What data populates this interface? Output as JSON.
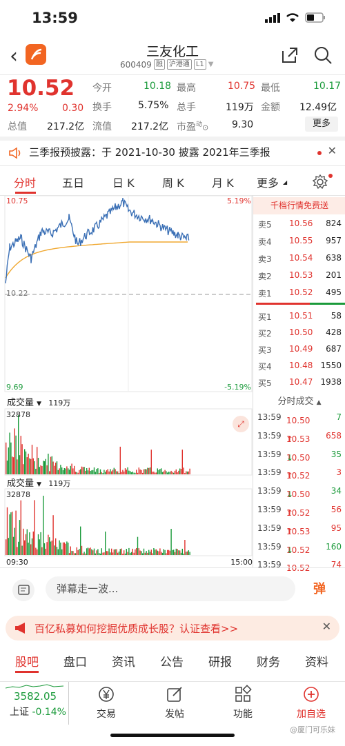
{
  "status": {
    "time": "13:59"
  },
  "nav": {
    "title": "三友化工",
    "code": "600409",
    "tags": [
      "融",
      "沪港通",
      "L1"
    ]
  },
  "quote": {
    "price": "10.52",
    "pct": "2.94%",
    "change": "0.30",
    "open_label": "今开",
    "open": "10.18",
    "high_label": "最高",
    "high": "10.75",
    "low_label": "最低",
    "low": "10.17",
    "turnover_label": "换手",
    "turnover": "5.75%",
    "volume_label": "总手",
    "volume": "119万",
    "amount_label": "金额",
    "amount": "12.49亿",
    "mcap_label": "总值",
    "mcap": "217.2亿",
    "float_label": "流值",
    "float": "217.2亿",
    "pe_label": "市盈",
    "pe_sup": "动",
    "pe": "9.30",
    "more": "更多"
  },
  "announce": {
    "text": "三季报预披露：于 2021-10-30 披露 2021年三季报"
  },
  "tabs": [
    "分时",
    "五日",
    "日 K",
    "周 K",
    "月 K",
    "更多"
  ],
  "chart": {
    "top_price": "10.75",
    "top_pct": "5.19%",
    "mid_price": "10.22",
    "bottom_price": "9.69",
    "bottom_pct": "-5.19%",
    "vol_label": "成交量",
    "vol_total": "119万",
    "vol_max": "32878",
    "time_start": "09:30",
    "time_end": "15:00"
  },
  "book": {
    "banner": "千档行情免费送",
    "asks": [
      {
        "label": "卖5",
        "price": "10.56",
        "vol": "824"
      },
      {
        "label": "卖4",
        "price": "10.55",
        "vol": "957"
      },
      {
        "label": "卖3",
        "price": "10.54",
        "vol": "638"
      },
      {
        "label": "卖2",
        "price": "10.53",
        "vol": "201"
      },
      {
        "label": "卖1",
        "price": "10.52",
        "vol": "495"
      }
    ],
    "bids": [
      {
        "label": "买1",
        "price": "10.51",
        "vol": "58"
      },
      {
        "label": "买2",
        "price": "10.50",
        "vol": "428"
      },
      {
        "label": "买3",
        "price": "10.49",
        "vol": "687"
      },
      {
        "label": "买4",
        "price": "10.48",
        "vol": "1550"
      },
      {
        "label": "买5",
        "price": "10.47",
        "vol": "1938"
      }
    ],
    "ticks_title": "分时成交",
    "ticks": [
      {
        "time": "13:59",
        "price": "10.50",
        "dir": "",
        "vol": "7",
        "color": "green"
      },
      {
        "time": "13:59",
        "price": "10.53",
        "dir": "↑",
        "vol": "658",
        "color": "red"
      },
      {
        "time": "13:59",
        "price": "10.50",
        "dir": "↓",
        "vol": "35",
        "color": "green"
      },
      {
        "time": "13:59",
        "price": "10.52",
        "dir": "↑",
        "vol": "3",
        "color": "red"
      },
      {
        "time": "13:59",
        "price": "10.50",
        "dir": "↓",
        "vol": "34",
        "color": "green"
      },
      {
        "time": "13:59",
        "price": "10.52",
        "dir": "↑",
        "vol": "56",
        "color": "red"
      },
      {
        "time": "13:59",
        "price": "10.53",
        "dir": "↑",
        "vol": "95",
        "color": "red"
      },
      {
        "time": "13:59",
        "price": "10.52",
        "dir": "↓",
        "vol": "160",
        "color": "green"
      },
      {
        "time": "13:59",
        "price": "10.52",
        "dir": "",
        "vol": "74",
        "color": "red"
      }
    ]
  },
  "danmu": {
    "placeholder": "弹幕走一波...",
    "btn": "弹"
  },
  "ad": {
    "text": "百亿私募如何挖掘优质成长股？认证查看>>"
  },
  "bottom_tabs": [
    "股吧",
    "盘口",
    "资讯",
    "公告",
    "研报",
    "财务",
    "资料"
  ],
  "bottom_bar": {
    "index_value": "3582.05",
    "index_name": "上证",
    "index_pct": "-0.14%",
    "items": [
      "交易",
      "发帖",
      "功能",
      "加自选"
    ]
  },
  "watermark": "@厦门可乐妹"
}
